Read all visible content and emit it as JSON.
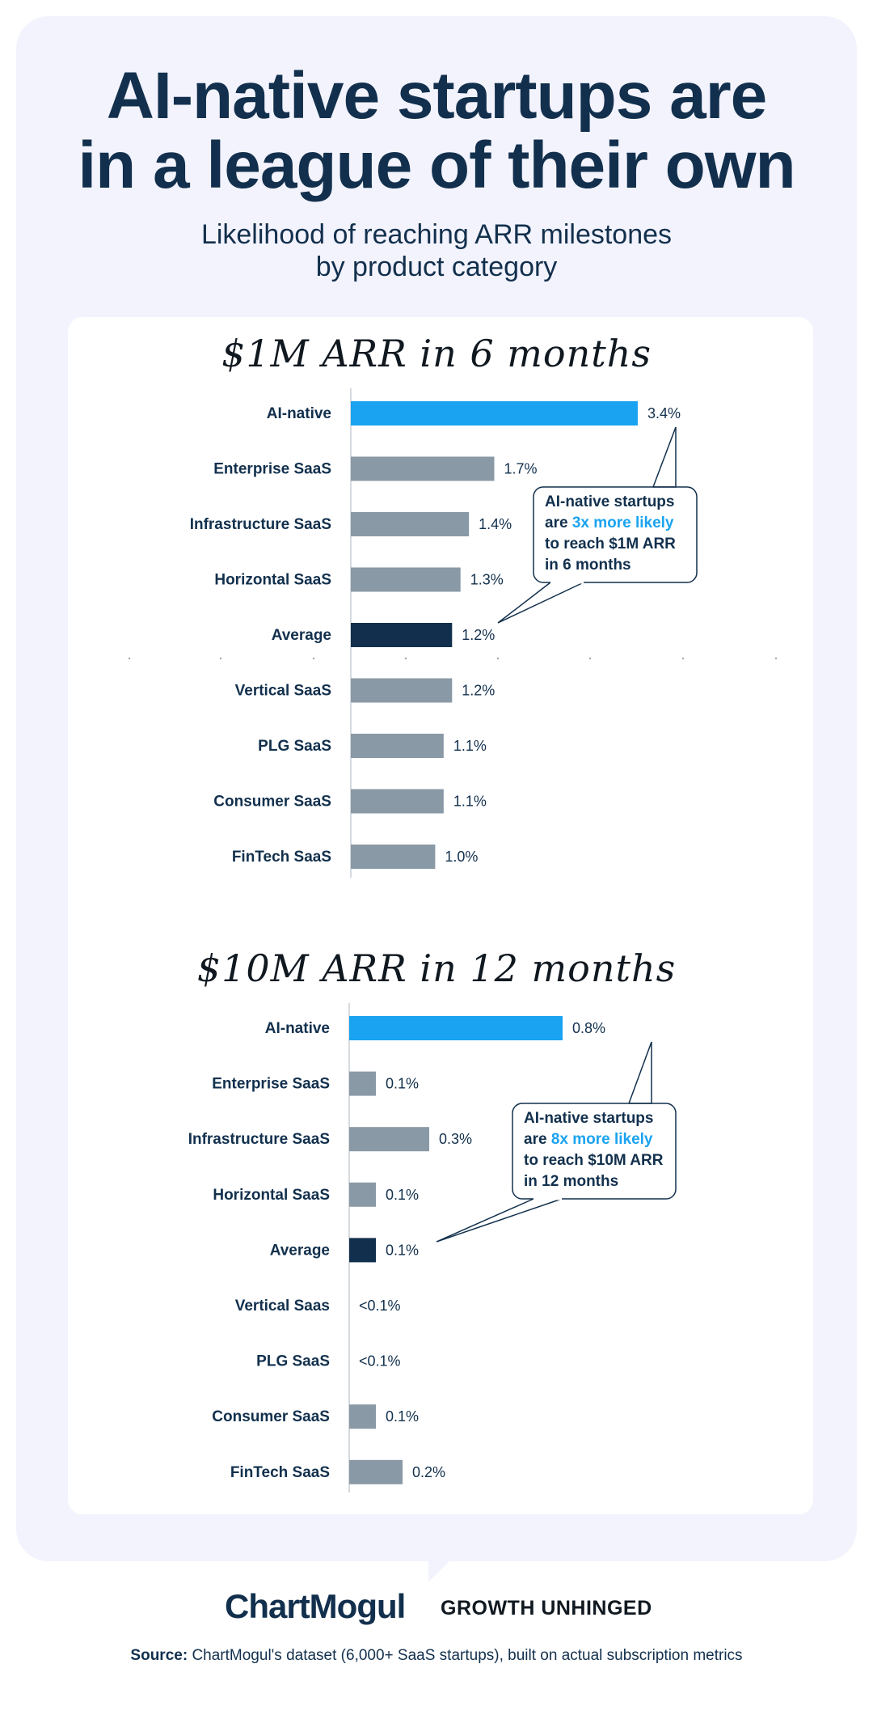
{
  "header": {
    "title_line1": "AI-native startups are",
    "title_line2": "in a league of their own",
    "subtitle_line1": "Likelihood of reaching ARR milestones",
    "subtitle_line2": "by product category"
  },
  "chart_data": [
    {
      "type": "bar",
      "orientation": "horizontal",
      "title": "$1M ARR in 6 months",
      "categories": [
        "AI-native",
        "Enterprise SaaS",
        "Infrastructure SaaS",
        "Horizontal SaaS",
        "Average",
        "Vertical SaaS",
        "PLG SaaS",
        "Consumer SaaS",
        "FinTech SaaS"
      ],
      "values": [
        3.4,
        1.7,
        1.4,
        1.3,
        1.2,
        1.2,
        1.1,
        1.1,
        1.0
      ],
      "labels": [
        "3.4%",
        "1.7%",
        "1.4%",
        "1.3%",
        "1.2%",
        "1.2%",
        "1.1%",
        "1.1%",
        "1.0%"
      ],
      "unit": "%",
      "colors": [
        "#1aa3f0",
        "#8a99a6",
        "#8a99a6",
        "#8a99a6",
        "#12304d",
        "#8a99a6",
        "#8a99a6",
        "#8a99a6",
        "#8a99a6"
      ],
      "callout": {
        "line1": "AI-native startups",
        "line2_pre": "are ",
        "line2_highlight": "3x more likely",
        "line3": "to reach $1M ARR",
        "line4": "in 6 months"
      }
    },
    {
      "type": "bar",
      "orientation": "horizontal",
      "title": "$10M ARR in 12 months",
      "categories": [
        "AI-native",
        "Enterprise SaaS",
        "Infrastructure SaaS",
        "Horizontal SaaS",
        "Average",
        "Vertical Saas",
        "PLG SaaS",
        "Consumer SaaS",
        "FinTech SaaS"
      ],
      "values": [
        0.8,
        0.1,
        0.3,
        0.1,
        0.1,
        0.0,
        0.0,
        0.1,
        0.2
      ],
      "labels": [
        "0.8%",
        "0.1%",
        "0.3%",
        "0.1%",
        "0.1%",
        "<0.1%",
        "<0.1%",
        "0.1%",
        "0.2%"
      ],
      "unit": "%",
      "colors": [
        "#1aa3f0",
        "#8a99a6",
        "#8a99a6",
        "#8a99a6",
        "#12304d",
        "#8a99a6",
        "#8a99a6",
        "#8a99a6",
        "#8a99a6"
      ],
      "callout": {
        "line1": "AI-native startups",
        "line2_pre": "are ",
        "line2_highlight": "8x more likely",
        "line3": "to reach $10M ARR",
        "line4": "in 12 months"
      }
    }
  ],
  "footer": {
    "brand1": "ChartMogul",
    "brand2": "GROWTH UNHINGED",
    "source_label": "Source:",
    "source_text": " ChartMogul's dataset (6,000+ SaaS startups), built on actual subscription metrics"
  }
}
